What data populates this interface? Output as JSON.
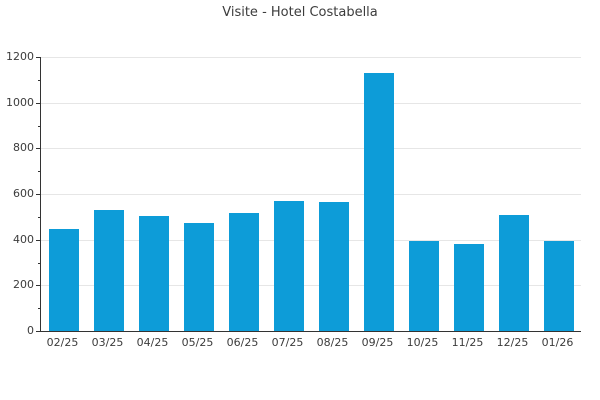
{
  "chart_data": {
    "type": "bar",
    "title": "Visite - Hotel Costabella",
    "categories": [
      "02/25",
      "03/25",
      "04/25",
      "05/25",
      "06/25",
      "07/25",
      "08/25",
      "09/25",
      "10/25",
      "11/25",
      "12/25",
      "01/26"
    ],
    "values": [
      445,
      530,
      505,
      475,
      515,
      570,
      565,
      1130,
      395,
      380,
      510,
      395
    ],
    "xlabel": "",
    "ylabel": "",
    "ylim": [
      0,
      1200
    ],
    "yticks": [
      0,
      200,
      400,
      600,
      800,
      1000,
      1200
    ],
    "minor_yticks": [
      100,
      300,
      500,
      700,
      900,
      1100
    ],
    "grid": "horizontal",
    "legend": "none",
    "colors": {
      "bar": "#0d9cd8",
      "grid": "#e6e6e6",
      "axis": "#333333",
      "text": "#3c3c3c",
      "background": "#ffffff"
    }
  }
}
